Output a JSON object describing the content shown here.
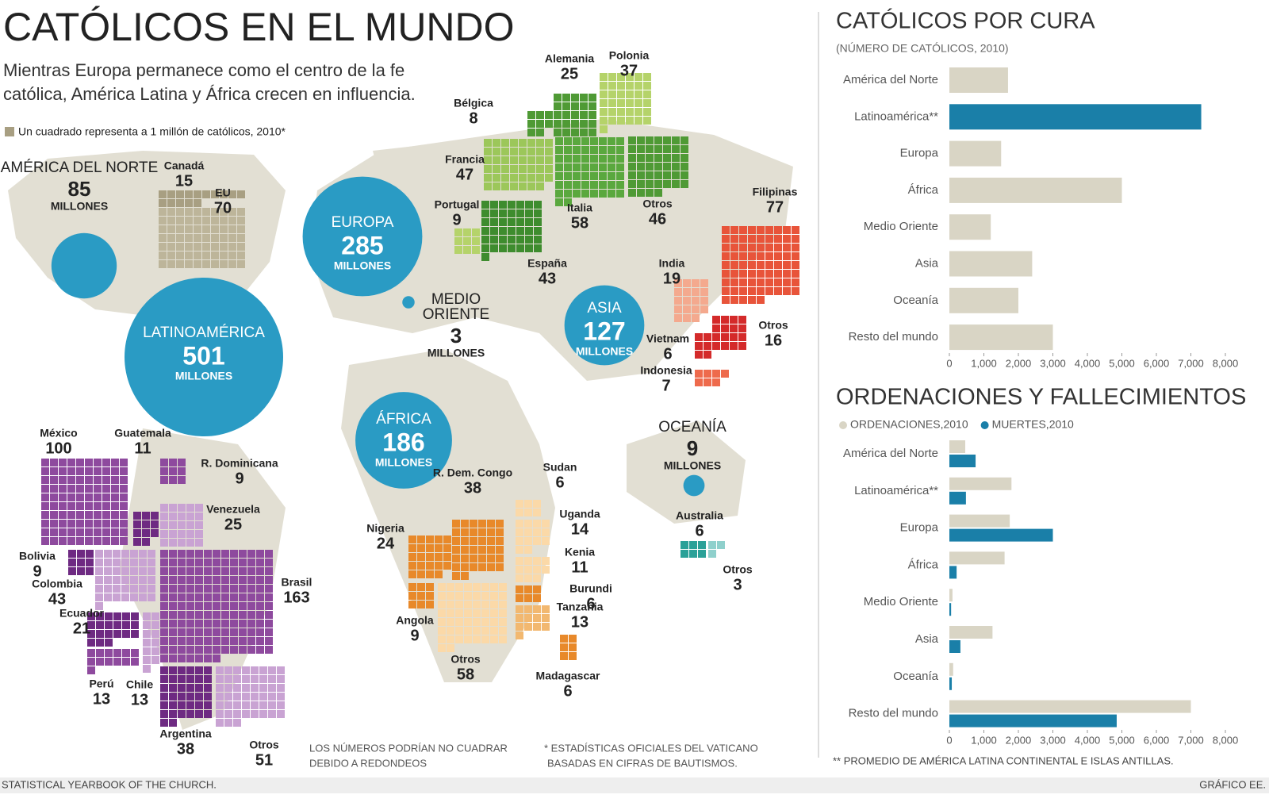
{
  "header": {
    "title": "CATÓLICOS EN EL MUNDO",
    "subtitle_lines": [
      "Mientras Europa permanece como el centro de la fe",
      "católica, América Latina y África crecen en influencia."
    ],
    "legend_note": "Un cuadrado representa a 1 millón de católicos, 2010*"
  },
  "map": {
    "unit": "MILLONES",
    "regions": [
      {
        "name": [
          "AMÉRICA DEL NORTE"
        ],
        "value": 85,
        "color": "#2a9bc4"
      },
      {
        "name": [
          "LATINOAMÉRICA"
        ],
        "value": 501,
        "color": "#2a9bc4"
      },
      {
        "name": [
          "EUROPA"
        ],
        "value": 285,
        "color": "#2a9bc4"
      },
      {
        "name": [
          "MEDIO",
          "ORIENTE"
        ],
        "value": 3,
        "color": "#2a9bc4"
      },
      {
        "name": [
          "ASIA"
        ],
        "value": 127,
        "color": "#2a9bc4"
      },
      {
        "name": [
          "ÁFRICA"
        ],
        "value": 186,
        "color": "#2a9bc4"
      },
      {
        "name": [
          "OCEANÍA"
        ],
        "value": 9,
        "color": "#2a9bc4"
      }
    ],
    "countries": [
      {
        "name": "Canadá",
        "value": 15,
        "color": "#a89f82"
      },
      {
        "name": "EU",
        "value": 70,
        "color": "#bdb59a"
      },
      {
        "name": "Bélgica",
        "value": 8,
        "color": "#4f9a35"
      },
      {
        "name": "Alemania",
        "value": 25,
        "color": "#4f9a35"
      },
      {
        "name": "Polonia",
        "value": 37,
        "color": "#b5d36a"
      },
      {
        "name": "Francia",
        "value": 47,
        "color": "#9cc75a"
      },
      {
        "name": "Portugal",
        "value": 9,
        "color": "#b5d36a"
      },
      {
        "name": "España",
        "value": 43,
        "color": "#3e8c2e"
      },
      {
        "name": "Italia",
        "value": 58,
        "color": "#5aa83e"
      },
      {
        "name": "Otros",
        "value": 46,
        "color": "#4f9a35"
      },
      {
        "name": "Filipinas",
        "value": 77,
        "color": "#e8543a"
      },
      {
        "name": "India",
        "value": 19,
        "color": "#f4a98e"
      },
      {
        "name": "Vietnam",
        "value": 6,
        "color": "#d42a2a"
      },
      {
        "name": "Indonesia",
        "value": 7,
        "color": "#ee6a4c"
      },
      {
        "name": "Otros",
        "value": 16,
        "color": "#d42a2a"
      },
      {
        "name": "México",
        "value": 100,
        "color": "#8e4a9e"
      },
      {
        "name": "Guatemala",
        "value": 11,
        "color": "#6e2a82"
      },
      {
        "name": "R. Dominicana",
        "value": 9,
        "color": "#8e4a9e"
      },
      {
        "name": "Venezuela",
        "value": 25,
        "color": "#c9a3d3"
      },
      {
        "name": "Bolivia",
        "value": 9,
        "color": "#6e2a82"
      },
      {
        "name": "Colombia",
        "value": 43,
        "color": "#c9a3d3"
      },
      {
        "name": "Ecuador",
        "value": 21,
        "color": "#6e2a82"
      },
      {
        "name": "Brasil",
        "value": 163,
        "color": "#8e4a9e"
      },
      {
        "name": "Perú",
        "value": 13,
        "color": "#8e4a9e"
      },
      {
        "name": "Chile",
        "value": 13,
        "color": "#c9a3d3"
      },
      {
        "name": "Argentina",
        "value": 38,
        "color": "#6e2a82"
      },
      {
        "name": "Otros",
        "value": 51,
        "color": "#c9a3d3"
      },
      {
        "name": "R. Dem. Congo",
        "value": 38,
        "color": "#e8892a"
      },
      {
        "name": "Sudan",
        "value": 6,
        "color": "#fbd9a8"
      },
      {
        "name": "Uganda",
        "value": 14,
        "color": "#fbd9a8"
      },
      {
        "name": "Nigeria",
        "value": 24,
        "color": "#e8892a"
      },
      {
        "name": "Kenia",
        "value": 11,
        "color": "#fbd9a8"
      },
      {
        "name": "Burundi",
        "value": 6,
        "color": "#e8892a"
      },
      {
        "name": "Tanzania",
        "value": 13,
        "color": "#f2b870"
      },
      {
        "name": "Angola",
        "value": 9,
        "color": "#e8892a"
      },
      {
        "name": "Otros",
        "value": 58,
        "color": "#fbd9a8"
      },
      {
        "name": "Madagascar",
        "value": 6,
        "color": "#e8892a"
      },
      {
        "name": "Australia",
        "value": 6,
        "color": "#2aa198"
      },
      {
        "name": "Otros",
        "value": 3,
        "color": "#8fd0cc"
      }
    ],
    "notes": {
      "rounding": [
        "LOS NÚMEROS PODRÍAN NO CUADRAR",
        "DEBIDO A REDONDEOS"
      ],
      "vatican": [
        "* ESTADÍSTICAS OFICIALES DEL VATICANO",
        "BASADAS EN CIFRAS DE BAUTISMOS."
      ]
    }
  },
  "chart_data": [
    {
      "type": "bar",
      "orientation": "horizontal",
      "title": "CATÓLICOS POR CURA",
      "subtitle": "(NÚMERO DE CATÓLICOS, 2010)",
      "categories": [
        "América del Norte",
        "Latinoamérica**",
        "Europa",
        "África",
        "Medio Oriente",
        "Asia",
        "Oceanía",
        "Resto del mundo"
      ],
      "values": [
        1700,
        7300,
        1500,
        5000,
        1200,
        2400,
        2000,
        3000
      ],
      "color": "#d9d5c5",
      "highlight": {
        "index": 1,
        "color": "#1a7fa8"
      },
      "xlim": [
        0,
        8000
      ],
      "xticks": [
        0,
        {
          "value": 1000,
          "label": "1,000"
        },
        {
          "value": 2000,
          "label": "2,000"
        },
        {
          "value": 3000,
          "label": "3,000"
        },
        {
          "value": 4000,
          "label": "4,000"
        },
        {
          "value": 5000,
          "label": "5,000"
        },
        {
          "value": 6000,
          "label": "6,000"
        },
        {
          "value": 7000,
          "label": "7,000"
        },
        {
          "value": 8000,
          "label": "8,000"
        }
      ]
    },
    {
      "type": "bar",
      "orientation": "horizontal",
      "title": "ORDENACIONES Y FALLECIMIENTOS",
      "legend": "top-left",
      "categories": [
        "América del Norte",
        "Latinoamérica**",
        "Europa",
        "África",
        "Medio Oriente",
        "Asia",
        "Oceanía",
        "Resto del mundo"
      ],
      "series": [
        {
          "name": "ORDENACIONES,2010",
          "color": "#d9d5c5",
          "values": [
            460,
            1800,
            1750,
            1600,
            90,
            1250,
            110,
            7000
          ]
        },
        {
          "name": "MUERTES,2010",
          "color": "#1a7fa8",
          "values": [
            760,
            480,
            3000,
            210,
            50,
            320,
            70,
            4850
          ]
        }
      ],
      "xlim": [
        0,
        8000
      ],
      "xticks": [
        0,
        {
          "value": 1000,
          "label": "1,000"
        },
        {
          "value": 2000,
          "label": "2,000"
        },
        {
          "value": 3000,
          "label": "3,000"
        },
        {
          "value": 4000,
          "label": "4,000"
        },
        {
          "value": 5000,
          "label": "5,000"
        },
        {
          "value": 6000,
          "label": "6,000"
        },
        {
          "value": 7000,
          "label": "7,000"
        },
        {
          "value": 8000,
          "label": "8,000"
        }
      ],
      "footnote": "** PROMEDIO DE AMÉRICA LATINA CONTINENTAL E ISLAS ANTILLAS."
    }
  ],
  "footer": {
    "source": "STATISTICAL YEARBOOK OF THE CHURCH.",
    "credit": "GRÁFICO EE."
  }
}
